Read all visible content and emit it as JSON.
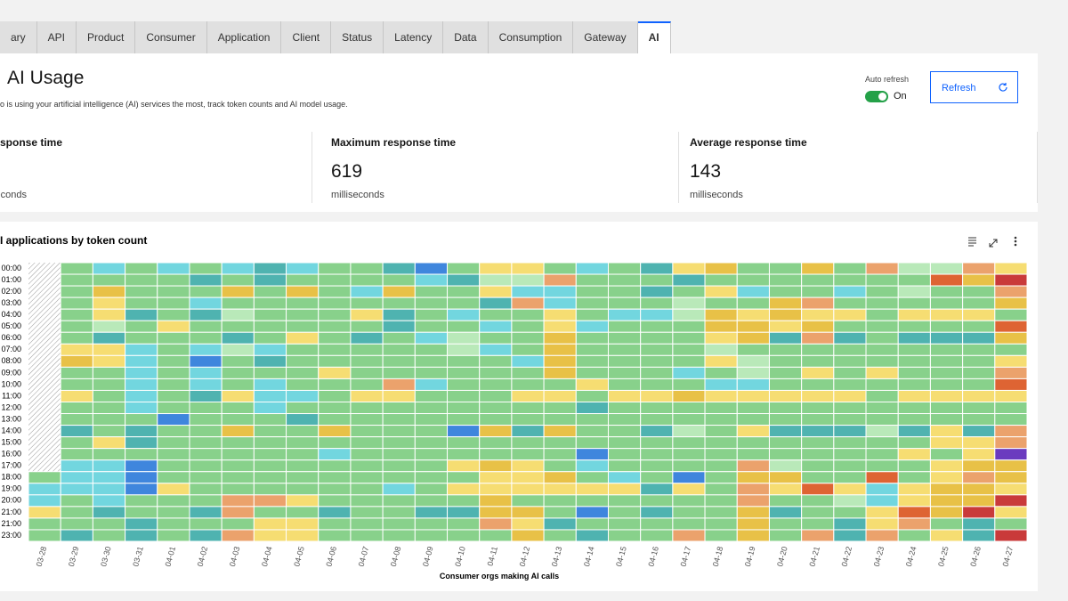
{
  "tabs": [
    "ary",
    "API",
    "Product",
    "Consumer",
    "Application",
    "Client",
    "Status",
    "Latency",
    "Data",
    "Consumption",
    "Gateway",
    "AI"
  ],
  "header": {
    "title": "AI Usage",
    "description": "o is using your artificial intelligence (AI) services the most, track token counts and AI model usage."
  },
  "auto_refresh": {
    "label": "Auto refresh",
    "state": "On"
  },
  "refresh_button": "Refresh",
  "metrics": [
    {
      "label": "num response time",
      "unit": "econds"
    },
    {
      "label": "Maximum response time",
      "value": 619,
      "unit": "milliseconds"
    },
    {
      "label": "Average response time",
      "value": 143,
      "unit": "milliseconds"
    }
  ],
  "chart_data": {
    "type": "heatmap",
    "title": "I applications by token count",
    "x_label": "Consumer orgs making AI calls",
    "categories": [
      "03-28",
      "03-29",
      "03-30",
      "03-31",
      "04-01",
      "04-02",
      "04-03",
      "04-04",
      "04-05",
      "04-06",
      "04-07",
      "04-08",
      "04-09",
      "04-10",
      "04-11",
      "04-12",
      "04-13",
      "04-14",
      "04-15",
      "04-16",
      "04-17",
      "04-18",
      "04-19",
      "04-20",
      "04-21",
      "04-22",
      "04-23",
      "04-24",
      "04-25",
      "04-26",
      "04-27"
    ],
    "y_categories": [
      "00:00",
      "01:00",
      "02:00",
      "03:00",
      "04:00",
      "05:00",
      "06:00",
      "07:00",
      "08:00",
      "09:00",
      "10:00",
      "11:00",
      "12:00",
      "13:00",
      "14:00",
      "15:00",
      "16:00",
      "17:00",
      "18:00",
      "19:00",
      "20:00",
      "21:00",
      "21:00",
      "23:00"
    ],
    "colors": [
      "#3f86dd",
      "#4fb3b0",
      "#72d6df",
      "#b9e9b9",
      "#88d18b",
      "#f6dd72",
      "#e8c147",
      "#eba26c",
      "#de6433",
      "#c93a3a",
      "#6b3bbf"
    ],
    "values": [
      [
        null,
        5,
        3,
        5,
        3,
        5,
        3,
        2,
        3,
        5,
        5,
        2,
        1,
        5,
        6,
        6,
        5,
        3,
        5,
        2,
        6,
        7,
        5,
        5,
        7,
        5,
        8,
        4,
        4,
        8,
        6
      ],
      [
        null,
        5,
        5,
        5,
        5,
        2,
        5,
        2,
        5,
        5,
        5,
        5,
        3,
        2,
        4,
        4,
        8,
        5,
        5,
        5,
        2,
        5,
        5,
        5,
        5,
        5,
        5,
        5,
        9,
        7,
        10
      ],
      [
        null,
        5,
        7,
        5,
        5,
        5,
        7,
        5,
        7,
        5,
        3,
        7,
        5,
        5,
        6,
        3,
        3,
        5,
        5,
        2,
        5,
        6,
        3,
        5,
        5,
        3,
        5,
        4,
        5,
        5,
        8
      ],
      [
        null,
        5,
        6,
        5,
        5,
        3,
        5,
        5,
        5,
        5,
        5,
        5,
        5,
        5,
        2,
        8,
        3,
        5,
        5,
        5,
        4,
        5,
        5,
        7,
        8,
        5,
        5,
        5,
        5,
        5,
        7
      ],
      [
        null,
        5,
        6,
        2,
        5,
        2,
        4,
        5,
        5,
        5,
        6,
        2,
        5,
        3,
        5,
        5,
        6,
        5,
        3,
        3,
        4,
        7,
        6,
        7,
        6,
        6,
        5,
        6,
        6,
        6,
        5
      ],
      [
        null,
        5,
        4,
        5,
        6,
        5,
        5,
        5,
        5,
        5,
        5,
        2,
        5,
        5,
        3,
        5,
        6,
        3,
        5,
        5,
        5,
        7,
        7,
        6,
        7,
        5,
        5,
        5,
        5,
        5,
        9
      ],
      [
        null,
        5,
        2,
        5,
        5,
        5,
        2,
        5,
        6,
        5,
        2,
        5,
        3,
        4,
        5,
        5,
        7,
        5,
        5,
        5,
        5,
        6,
        7,
        2,
        8,
        2,
        5,
        2,
        2,
        2,
        7
      ],
      [
        null,
        6,
        6,
        3,
        5,
        3,
        4,
        3,
        5,
        5,
        5,
        5,
        5,
        4,
        3,
        5,
        7,
        5,
        5,
        5,
        5,
        4,
        5,
        5,
        5,
        5,
        5,
        5,
        5,
        5,
        5
      ],
      [
        null,
        7,
        6,
        3,
        5,
        1,
        5,
        2,
        5,
        5,
        5,
        5,
        5,
        5,
        5,
        3,
        7,
        5,
        5,
        5,
        5,
        6,
        4,
        5,
        5,
        5,
        5,
        5,
        5,
        5,
        6
      ],
      [
        null,
        5,
        5,
        3,
        5,
        3,
        5,
        5,
        5,
        6,
        5,
        5,
        5,
        5,
        5,
        5,
        7,
        5,
        5,
        5,
        3,
        5,
        4,
        5,
        6,
        5,
        6,
        5,
        5,
        5,
        8
      ],
      [
        null,
        5,
        5,
        3,
        5,
        3,
        5,
        3,
        5,
        5,
        5,
        8,
        3,
        5,
        5,
        5,
        5,
        6,
        5,
        5,
        5,
        3,
        3,
        5,
        5,
        5,
        5,
        5,
        5,
        5,
        9
      ],
      [
        null,
        6,
        5,
        3,
        5,
        2,
        6,
        3,
        3,
        5,
        6,
        6,
        5,
        5,
        5,
        6,
        6,
        5,
        6,
        6,
        7,
        6,
        6,
        6,
        6,
        6,
        5,
        6,
        6,
        6,
        6
      ],
      [
        null,
        5,
        5,
        3,
        5,
        5,
        5,
        3,
        5,
        5,
        5,
        5,
        5,
        5,
        5,
        5,
        5,
        2,
        5,
        5,
        5,
        5,
        5,
        5,
        5,
        5,
        5,
        5,
        5,
        5,
        5
      ],
      [
        null,
        5,
        5,
        5,
        1,
        5,
        5,
        5,
        2,
        5,
        5,
        5,
        5,
        5,
        5,
        5,
        5,
        5,
        5,
        5,
        5,
        5,
        5,
        5,
        5,
        5,
        5,
        5,
        5,
        5,
        5
      ],
      [
        null,
        2,
        5,
        2,
        5,
        5,
        7,
        5,
        5,
        7,
        5,
        5,
        5,
        1,
        7,
        2,
        7,
        5,
        5,
        2,
        4,
        5,
        6,
        2,
        2,
        2,
        4,
        2,
        6,
        2,
        8
      ],
      [
        null,
        5,
        6,
        2,
        5,
        5,
        5,
        5,
        5,
        5,
        5,
        5,
        5,
        5,
        5,
        5,
        5,
        5,
        5,
        5,
        5,
        5,
        5,
        5,
        5,
        5,
        5,
        5,
        6,
        6,
        8
      ],
      [
        null,
        5,
        5,
        5,
        5,
        5,
        5,
        5,
        5,
        3,
        5,
        5,
        5,
        5,
        5,
        5,
        5,
        1,
        5,
        5,
        5,
        5,
        5,
        5,
        5,
        5,
        5,
        6,
        5,
        6,
        11
      ],
      [
        null,
        3,
        3,
        1,
        5,
        5,
        5,
        5,
        5,
        5,
        5,
        5,
        5,
        6,
        7,
        6,
        5,
        3,
        5,
        5,
        5,
        5,
        8,
        4,
        5,
        5,
        5,
        5,
        6,
        7,
        7
      ],
      [
        5,
        3,
        3,
        1,
        5,
        5,
        5,
        5,
        5,
        5,
        5,
        5,
        5,
        5,
        6,
        6,
        7,
        5,
        3,
        5,
        1,
        5,
        7,
        7,
        5,
        5,
        9,
        5,
        6,
        8,
        7
      ],
      [
        3,
        3,
        3,
        1,
        6,
        5,
        5,
        5,
        5,
        5,
        5,
        3,
        5,
        6,
        6,
        6,
        6,
        6,
        6,
        2,
        6,
        5,
        8,
        6,
        9,
        6,
        3,
        6,
        7,
        7,
        6
      ],
      [
        3,
        5,
        3,
        5,
        5,
        5,
        8,
        8,
        6,
        5,
        5,
        5,
        5,
        5,
        7,
        5,
        5,
        5,
        5,
        5,
        5,
        5,
        8,
        5,
        5,
        4,
        3,
        6,
        7,
        7,
        10
      ],
      [
        6,
        5,
        2,
        5,
        5,
        2,
        8,
        5,
        5,
        2,
        5,
        5,
        2,
        2,
        7,
        7,
        5,
        1,
        5,
        2,
        5,
        5,
        7,
        2,
        5,
        5,
        6,
        9,
        7,
        10,
        6
      ],
      [
        5,
        5,
        5,
        2,
        5,
        5,
        5,
        6,
        6,
        5,
        5,
        5,
        5,
        5,
        8,
        6,
        2,
        5,
        5,
        5,
        5,
        5,
        7,
        5,
        5,
        2,
        6,
        8,
        5,
        2,
        5
      ],
      [
        5,
        2,
        5,
        2,
        5,
        2,
        8,
        6,
        6,
        5,
        5,
        5,
        5,
        5,
        5,
        7,
        5,
        2,
        5,
        5,
        8,
        5,
        7,
        5,
        8,
        2,
        8,
        5,
        6,
        2,
        10
      ]
    ]
  }
}
